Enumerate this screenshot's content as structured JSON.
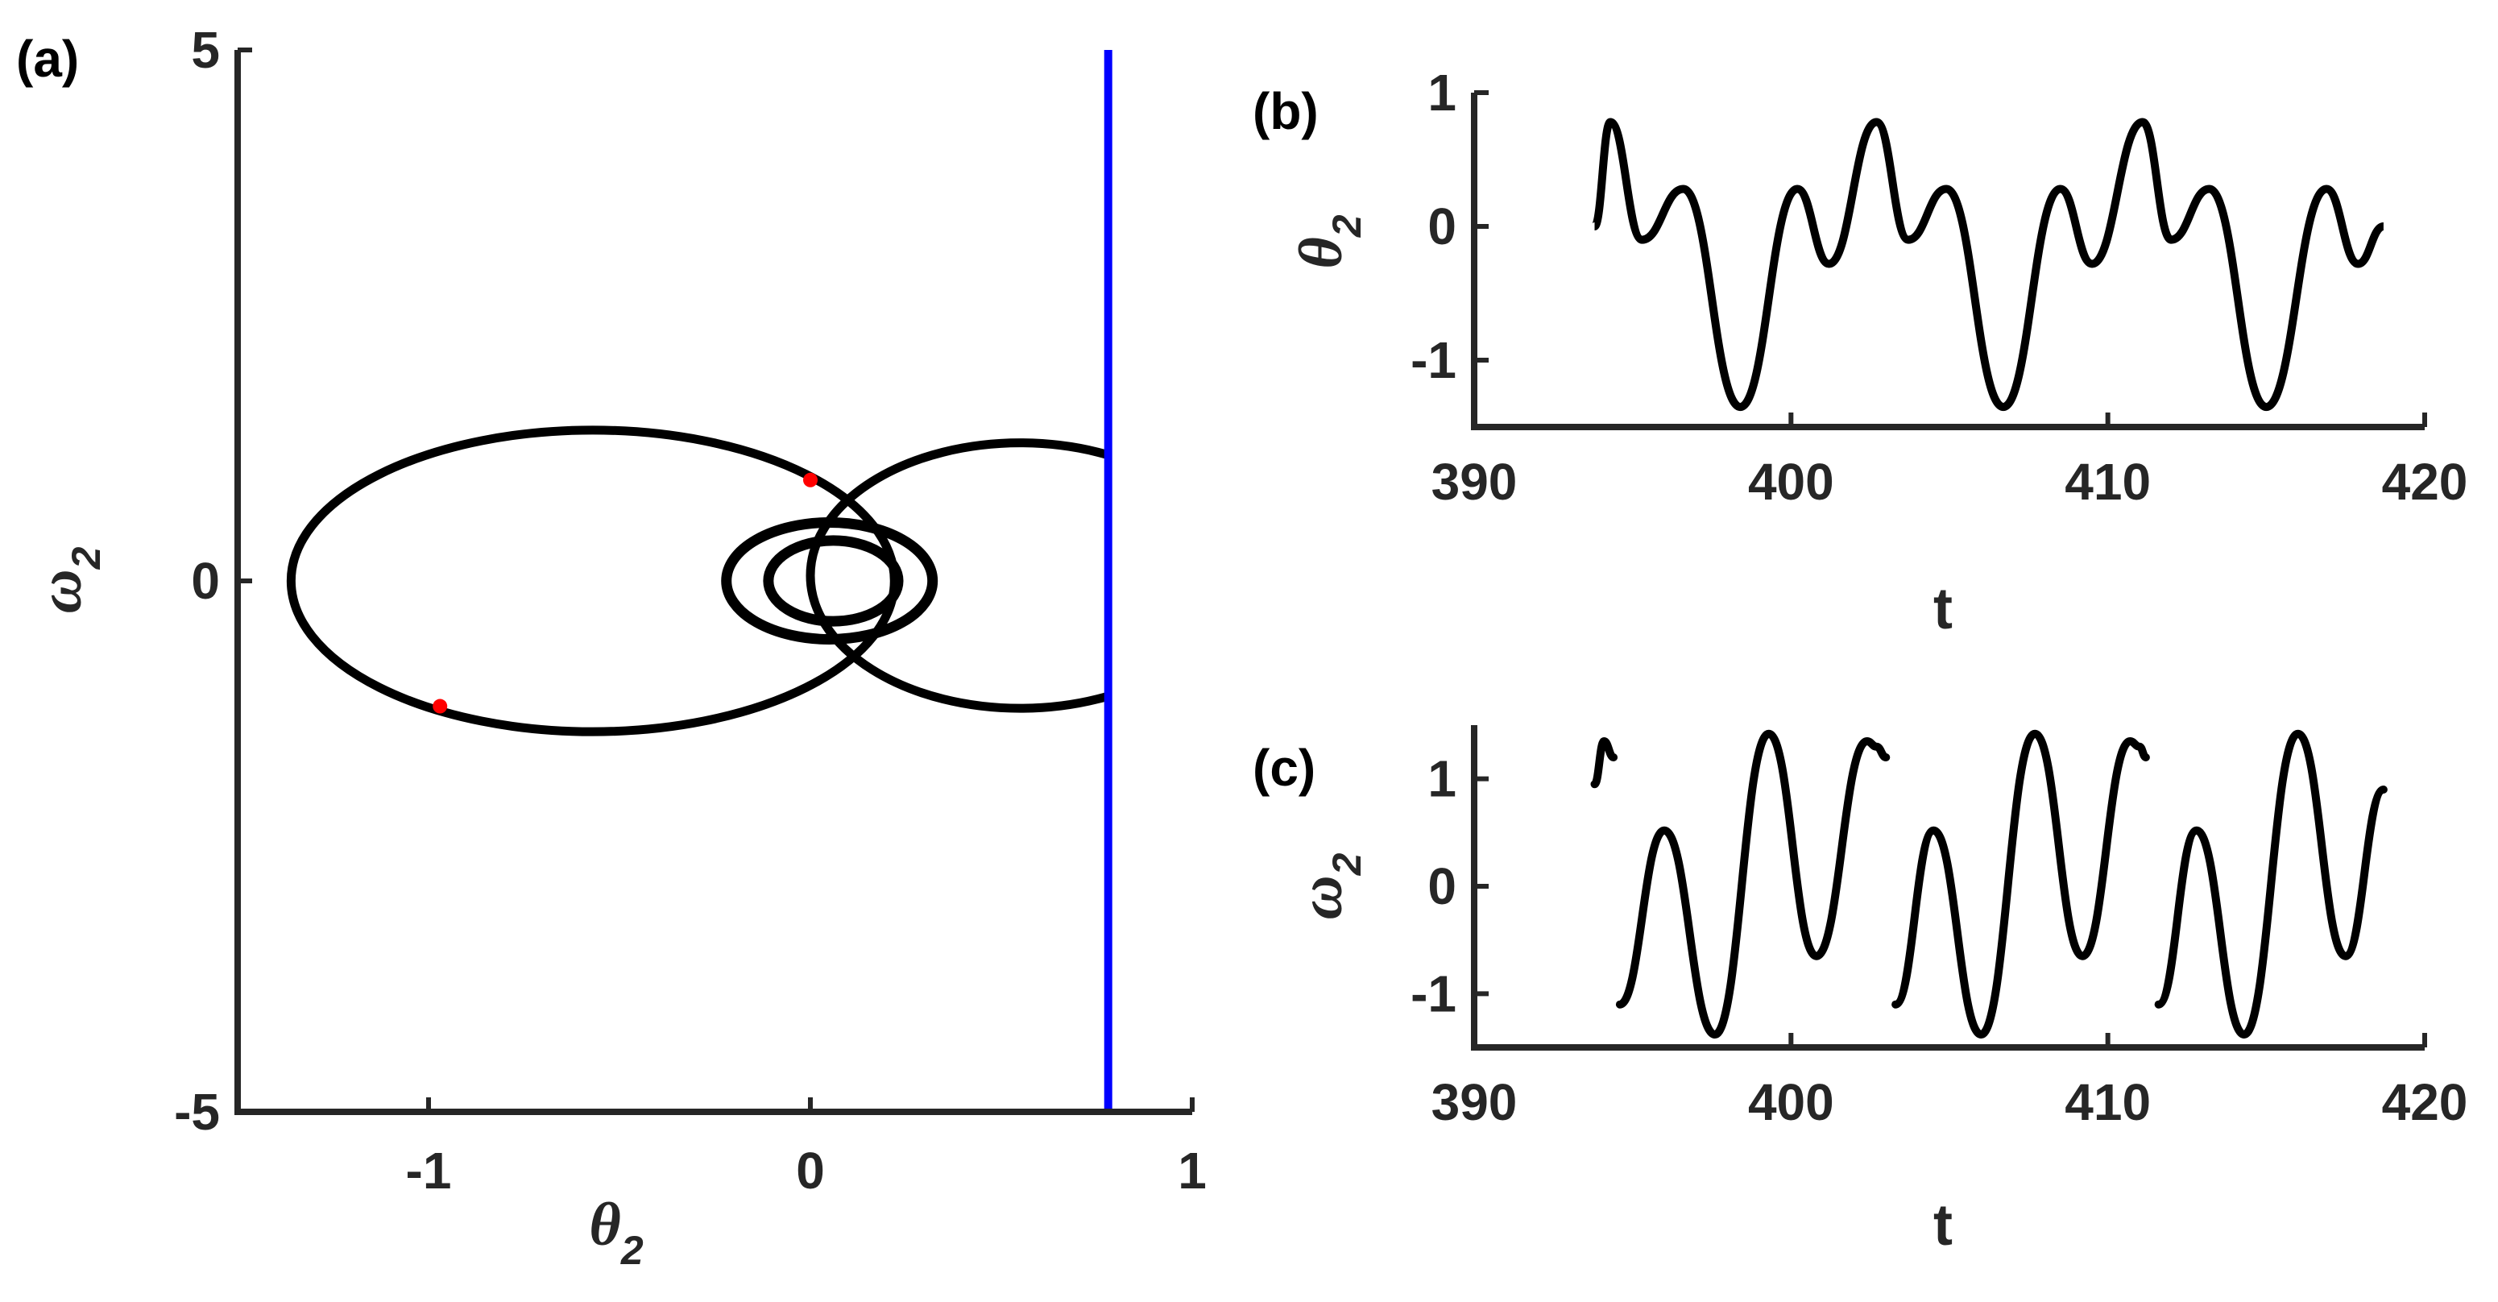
{
  "colors": {
    "trajectory": "#000000",
    "section_line": "#0000ff",
    "section_points": "#ff0000",
    "axes": "#262626"
  },
  "chart_data": [
    {
      "panel": "(a)",
      "type": "line",
      "xlabel": "θ",
      "xlabel_sub": "2",
      "ylabel": "ω",
      "ylabel_sub": "2",
      "xlim": [
        -1.5,
        1
      ],
      "ylim": [
        -5,
        5
      ],
      "xticks": [
        -1,
        0,
        1
      ],
      "xtick_labels": [
        "-1",
        "0",
        "1"
      ],
      "yticks": [
        -5,
        0,
        5
      ],
      "ytick_labels": [
        "-5",
        "0",
        "5"
      ],
      "vertical_line_x": 0.78,
      "section_points": [
        {
          "x": 0.0,
          "y": 0.95
        },
        {
          "x": -0.97,
          "y": -1.18
        }
      ],
      "loops": [
        {
          "cx": -0.57,
          "cy": 0.0,
          "rx": 0.79,
          "ry": 1.42
        },
        {
          "cx": 0.55,
          "cy": 0.05,
          "rx": 0.55,
          "ry": 1.25
        },
        {
          "cx": 0.05,
          "cy": 0.0,
          "rx": 0.27,
          "ry": 0.55
        },
        {
          "cx": 0.06,
          "cy": 0.0,
          "rx": 0.17,
          "ry": 0.38
        }
      ]
    },
    {
      "panel": "(b)",
      "type": "line",
      "xlabel": "t",
      "ylabel": "θ",
      "ylabel_sub": "2",
      "xlim": [
        390,
        420
      ],
      "ylim": [
        -1.5,
        1
      ],
      "xticks": [
        390,
        400,
        410,
        420
      ],
      "xtick_labels": [
        "390",
        "400",
        "410",
        "420"
      ],
      "yticks": [
        -1,
        0,
        1
      ],
      "ytick_labels": [
        "-1",
        "0",
        "1"
      ],
      "series": [
        {
          "x": [
            393.8,
            394.3,
            395.3,
            396.6,
            398.4,
            400.2,
            401.2,
            402.7,
            403.7,
            404.9,
            406.7,
            408.5,
            409.5,
            411.1,
            412.0,
            413.2,
            415.0,
            416.9,
            417.9,
            418.7
          ],
          "y": [
            0.0,
            0.78,
            -0.1,
            0.28,
            -1.35,
            0.28,
            -0.28,
            0.78,
            -0.1,
            0.28,
            -1.35,
            0.28,
            -0.28,
            0.78,
            -0.1,
            0.28,
            -1.35,
            0.28,
            -0.28,
            0.0
          ]
        }
      ]
    },
    {
      "panel": "(c)",
      "type": "line",
      "xlabel": "t",
      "ylabel": "ω",
      "ylabel_sub": "2",
      "xlim": [
        390,
        420
      ],
      "ylim": [
        -1.5,
        1.5
      ],
      "xticks": [
        390,
        400,
        410,
        420
      ],
      "xtick_labels": [
        "390",
        "400",
        "410",
        "420"
      ],
      "yticks": [
        -1,
        0,
        1
      ],
      "ytick_labels": [
        "-1",
        "0",
        "1"
      ],
      "series": [
        {
          "x": [
            393.8,
            394.1,
            394.4
          ],
          "y": [
            0.95,
            1.35,
            1.2
          ]
        },
        {
          "x": [
            394.6,
            396.0,
            397.6,
            399.3,
            400.8,
            402.4,
            402.7,
            403.0
          ],
          "y": [
            -1.1,
            0.52,
            -1.38,
            1.42,
            -0.65,
            1.35,
            1.3,
            1.2
          ]
        },
        {
          "x": [
            403.3,
            404.5,
            406.0,
            407.7,
            409.2,
            410.7,
            411.0,
            411.2
          ],
          "y": [
            -1.1,
            0.52,
            -1.38,
            1.42,
            -0.65,
            1.35,
            1.3,
            1.2
          ]
        },
        {
          "x": [
            411.6,
            412.8,
            414.3,
            416.0,
            417.5,
            418.7
          ],
          "y": [
            -1.1,
            0.52,
            -1.38,
            1.42,
            -0.65,
            0.9
          ]
        }
      ]
    }
  ]
}
